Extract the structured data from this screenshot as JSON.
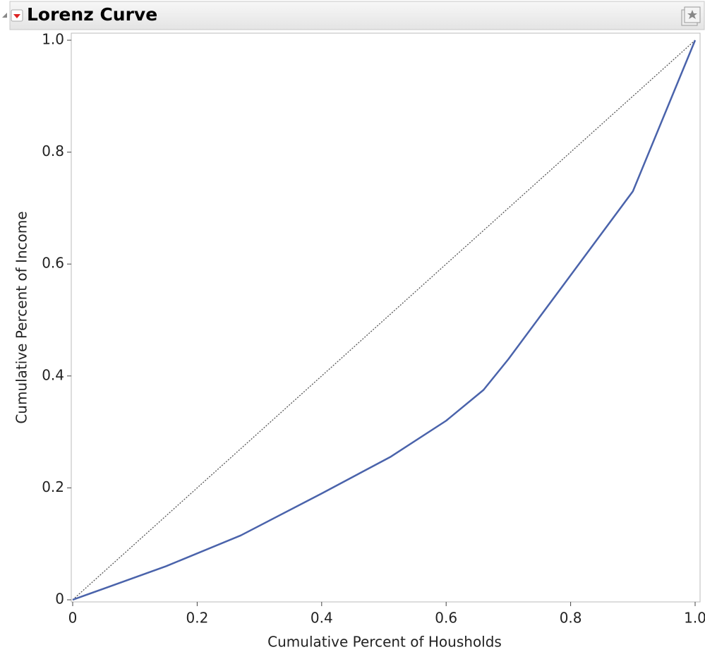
{
  "header": {
    "title": "Lorenz Curve"
  },
  "chart_data": {
    "type": "line",
    "xlabel": "Cumulative Percent of Housholds",
    "ylabel": "Cumulative Percent of Income",
    "x": [
      0,
      0.05,
      0.15,
      0.27,
      0.4,
      0.51,
      0.6,
      0.66,
      0.7,
      0.79,
      0.9,
      1
    ],
    "series": [
      {
        "name": "Lorenz Curve",
        "color": "#4a63ab",
        "values": [
          0,
          0.02,
          0.06,
          0.115,
          0.19,
          0.255,
          0.32,
          0.375,
          0.43,
          0.565,
          0.73,
          1
        ]
      }
    ],
    "xlim": [
      0,
      1
    ],
    "ylim": [
      0,
      1
    ],
    "xticks": [
      0,
      0.2,
      0.4,
      0.6,
      0.8,
      {
        "value": 1,
        "label": "1.0"
      }
    ],
    "yticks": [
      0,
      0.2,
      0.4,
      0.6,
      0.8,
      {
        "value": 1,
        "label": "1.0"
      }
    ],
    "equality_line": true
  }
}
